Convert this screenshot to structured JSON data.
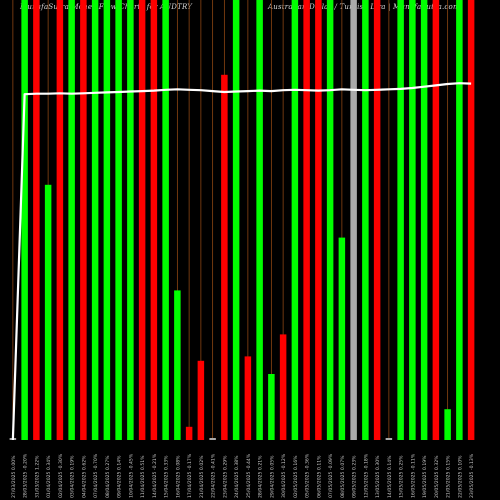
{
  "chart_data": {
    "type": "bar",
    "title_left": "MunafaSutra  Money  Flow  Charts  for  AUDTRY",
    "title_right": "Australian  Dollar  /  Turkish  Lira  |  MunafaSutra.com",
    "background": "#000000",
    "colors": {
      "up": "#00ff00",
      "down": "#ff0000",
      "neutral": "#aaaaaa",
      "line": "#ffffff",
      "grid": "#8b4513",
      "label": "#cccccc"
    },
    "grid": true,
    "ylim": [
      0,
      100
    ],
    "categories": [
      "27/03/2025  0.00%",
      "28/03/2025  -0.20%",
      "31/03/2025  1.22%",
      "01/04/2025  0.34%",
      "02/04/2025  -0.30%",
      "03/04/2025  0.19%",
      "04/04/2025  0.62%",
      "07/04/2025  -0.70%",
      "08/04/2025  0.27%",
      "09/04/2025  0.14%",
      "10/04/2025  -0.45%",
      "11/04/2025  0.51%",
      "14/04/2025  -0.21%",
      "15/04/2025  0.33%",
      "16/04/2025  0.08%",
      "17/04/2025  -0.17%",
      "21/04/2025  0.02%",
      "22/04/2025  -0.41%",
      "23/04/2025  0.29%",
      "24/04/2025  0.38%",
      "25/04/2025  -0.44%",
      "28/04/2025  0.21%",
      "29/04/2025  0.05%",
      "30/04/2025  -0.12%",
      "02/05/2025  0.16%",
      "05/05/2025  -0.36%",
      "06/05/2025  0.11%",
      "07/05/2025  -0.09%",
      "08/05/2025  0.07%",
      "09/05/2025  0.23%",
      "12/05/2025  -0.18%",
      "13/05/2025  0.30%",
      "14/05/2025  0.14%",
      "15/05/2025  0.25%",
      "16/05/2025  -0.11%",
      "19/05/2025  0.19%",
      "20/05/2025  0.32%",
      "21/05/2025  0.15%",
      "22/05/2025  0.10%",
      "23/05/2025  -0.13%"
    ],
    "values": [
      0,
      100,
      100,
      58,
      100,
      100,
      100,
      100,
      100,
      100,
      100,
      100,
      100,
      100,
      34,
      3,
      18,
      0,
      83,
      100,
      19,
      100,
      15,
      24,
      100,
      100,
      100,
      100,
      46,
      100,
      100,
      100,
      0,
      100,
      100,
      100,
      100,
      7,
      100,
      100
    ],
    "directions": [
      "neutral",
      "up",
      "down",
      "up",
      "down",
      "up",
      "down",
      "up",
      "up",
      "up",
      "up",
      "down",
      "down",
      "up",
      "up",
      "down",
      "down",
      "neutral",
      "down",
      "up",
      "down",
      "up",
      "up",
      "down",
      "up",
      "down",
      "down",
      "up",
      "up",
      "neutral",
      "up",
      "down",
      "neutral",
      "up",
      "up",
      "up",
      "down",
      "up",
      "up",
      "down"
    ],
    "line_values": [
      0,
      78.6,
      78.7,
      78.7,
      78.8,
      78.7,
      78.8,
      78.9,
      79.0,
      79.1,
      79.2,
      79.3,
      79.4,
      79.6,
      79.7,
      79.6,
      79.5,
      79.3,
      79.1,
      79.2,
      79.3,
      79.4,
      79.3,
      79.5,
      79.6,
      79.5,
      79.4,
      79.5,
      79.7,
      79.6,
      79.5,
      79.6,
      79.7,
      79.8,
      80.0,
      80.3,
      80.6,
      80.9,
      81.1,
      81.0
    ],
    "second_values": [
      0,
      0,
      0,
      0,
      0,
      0,
      0,
      0,
      0,
      0,
      0,
      0,
      0,
      0,
      0,
      0,
      0,
      0,
      0,
      0,
      0,
      0,
      0,
      0,
      0,
      0,
      0,
      0,
      0,
      0,
      0,
      0,
      0,
      0,
      0,
      0,
      0,
      0,
      0,
      0
    ]
  }
}
